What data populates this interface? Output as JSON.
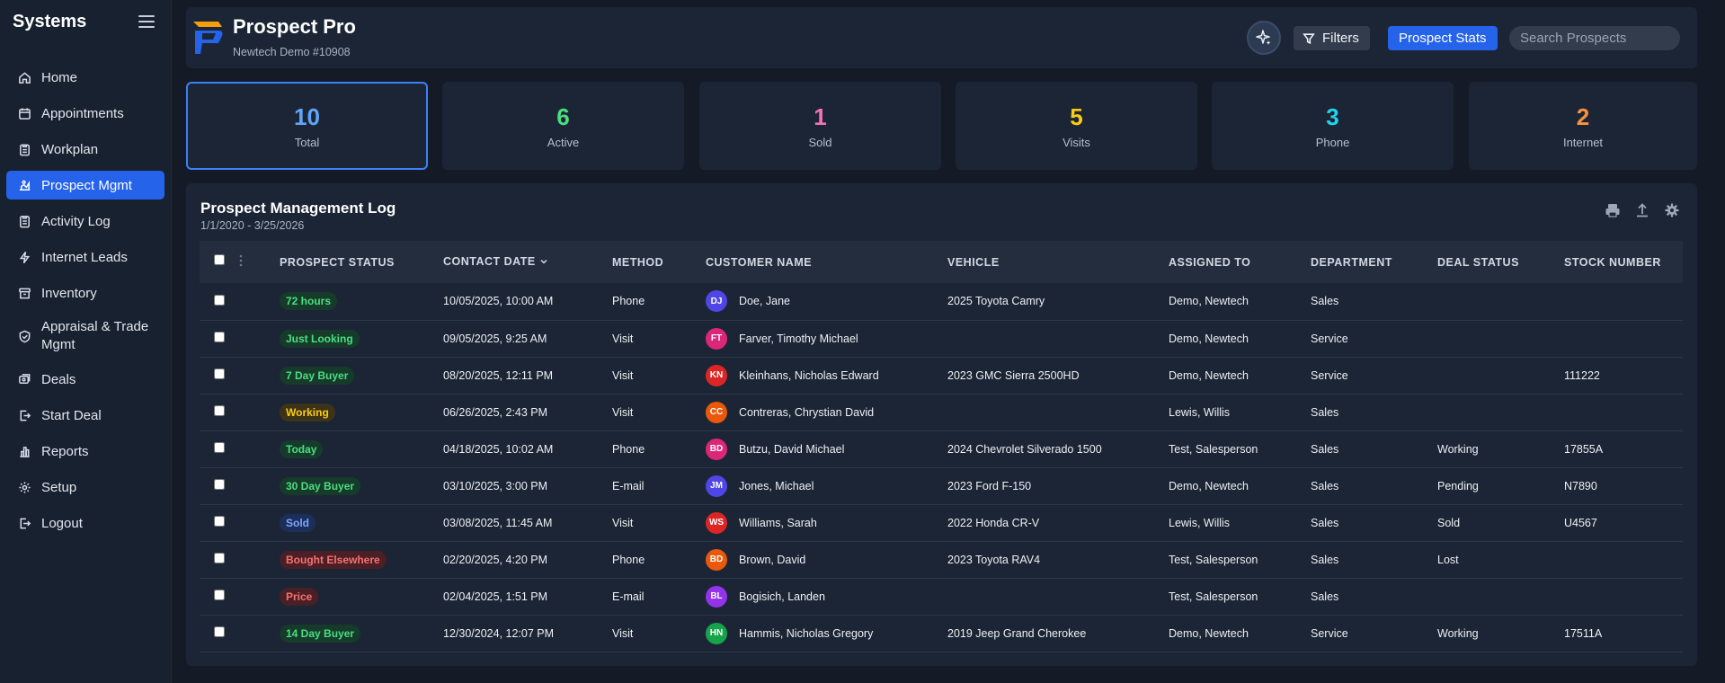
{
  "sidebar": {
    "brand": "Systems",
    "items": [
      {
        "label": "Home",
        "icon": "home-icon"
      },
      {
        "label": "Appointments",
        "icon": "calendar-icon"
      },
      {
        "label": "Workplan",
        "icon": "clipboard-icon"
      },
      {
        "label": "Prospect Mgmt",
        "icon": "prospect-icon"
      },
      {
        "label": "Activity Log",
        "icon": "activity-log-icon"
      },
      {
        "label": "Internet Leads",
        "icon": "lightning-icon"
      },
      {
        "label": "Inventory",
        "icon": "archive-icon"
      },
      {
        "label": "Appraisal & Trade Mgmt",
        "icon": "shield-check-icon"
      },
      {
        "label": "Deals",
        "icon": "stack-icon"
      },
      {
        "label": "Start Deal",
        "icon": "start-deal-icon"
      },
      {
        "label": "Reports",
        "icon": "bar-chart-icon"
      },
      {
        "label": "Setup",
        "icon": "gear-icon"
      },
      {
        "label": "Logout",
        "icon": "logout-icon"
      }
    ]
  },
  "header": {
    "title": "Prospect Pro",
    "subtitle": "Newtech Demo #10908",
    "filters_label": "Filters",
    "stats_label": "Prospect Stats",
    "search_placeholder": "Search Prospects"
  },
  "stats": [
    {
      "value": "10",
      "label": "Total",
      "color": "#60a5fa"
    },
    {
      "value": "6",
      "label": "Active",
      "color": "#4ade80"
    },
    {
      "value": "1",
      "label": "Sold",
      "color": "#f472b6"
    },
    {
      "value": "5",
      "label": "Visits",
      "color": "#facc15"
    },
    {
      "value": "3",
      "label": "Phone",
      "color": "#22d3ee"
    },
    {
      "value": "2",
      "label": "Internet",
      "color": "#fb923c"
    }
  ],
  "log": {
    "title": "Prospect Management Log",
    "range": "1/1/2020 - 3/25/2026",
    "columns": [
      "Prospect Status",
      "Contact Date",
      "Method",
      "Customer Name",
      "Vehicle",
      "Assigned To",
      "Department",
      "Deal Status",
      "Stock Number"
    ],
    "rows": [
      {
        "status": "72 hours",
        "status_style": "green",
        "date": "10/05/2025, 10:00 AM",
        "method": "Phone",
        "initials": "DJ",
        "avatar_color": "#4f46e5",
        "name": "Doe, Jane",
        "vehicle": "2025 Toyota Camry",
        "assigned": "Demo, Newtech",
        "dept": "Sales",
        "deal": "",
        "stock": ""
      },
      {
        "status": "Just Looking",
        "status_style": "green",
        "date": "09/05/2025, 9:25 AM",
        "method": "Visit",
        "initials": "FT",
        "avatar_color": "#db2777",
        "name": "Farver, Timothy Michael",
        "vehicle": "",
        "assigned": "Demo, Newtech",
        "dept": "Service",
        "deal": "",
        "stock": ""
      },
      {
        "status": "7 Day Buyer",
        "status_style": "green",
        "date": "08/20/2025, 12:11 PM",
        "method": "Visit",
        "initials": "KN",
        "avatar_color": "#dc2626",
        "name": "Kleinhans, Nicholas Edward",
        "vehicle": "2023 GMC Sierra 2500HD",
        "assigned": "Demo, Newtech",
        "dept": "Service",
        "deal": "",
        "stock": "111222"
      },
      {
        "status": "Working",
        "status_style": "yellow",
        "date": "06/26/2025, 2:43 PM",
        "method": "Visit",
        "initials": "CC",
        "avatar_color": "#ea580c",
        "name": "Contreras, Chrystian David",
        "vehicle": "",
        "assigned": "Lewis, Willis",
        "dept": "Sales",
        "deal": "",
        "stock": ""
      },
      {
        "status": "Today",
        "status_style": "green",
        "date": "04/18/2025, 10:02 AM",
        "method": "Phone",
        "initials": "BD",
        "avatar_color": "#db2777",
        "name": "Butzu, David Michael",
        "vehicle": "2024 Chevrolet Silverado 1500",
        "assigned": "Test, Salesperson",
        "dept": "Sales",
        "deal": "Working",
        "stock": "17855A"
      },
      {
        "status": "30 Day Buyer",
        "status_style": "green",
        "date": "03/10/2025, 3:00 PM",
        "method": "E-mail",
        "initials": "JM",
        "avatar_color": "#4f46e5",
        "name": "Jones, Michael",
        "vehicle": "2023 Ford F-150",
        "assigned": "Demo, Newtech",
        "dept": "Sales",
        "deal": "Pending",
        "stock": "N7890"
      },
      {
        "status": "Sold",
        "status_style": "blue",
        "date": "03/08/2025, 11:45 AM",
        "method": "Visit",
        "initials": "WS",
        "avatar_color": "#dc2626",
        "name": "Williams, Sarah",
        "vehicle": "2022 Honda CR-V",
        "assigned": "Lewis, Willis",
        "dept": "Sales",
        "deal": "Sold",
        "stock": "U4567"
      },
      {
        "status": "Bought Elsewhere",
        "status_style": "red",
        "date": "02/20/2025, 4:20 PM",
        "method": "Phone",
        "initials": "BD",
        "avatar_color": "#ea580c",
        "name": "Brown, David",
        "vehicle": "2023 Toyota RAV4",
        "assigned": "Test, Salesperson",
        "dept": "Sales",
        "deal": "Lost",
        "stock": ""
      },
      {
        "status": "Price",
        "status_style": "red",
        "date": "02/04/2025, 1:51 PM",
        "method": "E-mail",
        "initials": "BL",
        "avatar_color": "#9333ea",
        "name": "Bogisich, Landen",
        "vehicle": "",
        "assigned": "Test, Salesperson",
        "dept": "Sales",
        "deal": "",
        "stock": ""
      },
      {
        "status": "14 Day Buyer",
        "status_style": "green",
        "date": "12/30/2024, 12:07 PM",
        "method": "Visit",
        "initials": "HN",
        "avatar_color": "#16a34a",
        "name": "Hammis, Nicholas Gregory",
        "vehicle": "2019 Jeep Grand Cherokee",
        "assigned": "Demo, Newtech",
        "dept": "Service",
        "deal": "Working",
        "stock": "17511A"
      }
    ]
  },
  "colors": {
    "accent": "#2563eb",
    "background": "#141b27",
    "panel": "#1c2535"
  }
}
